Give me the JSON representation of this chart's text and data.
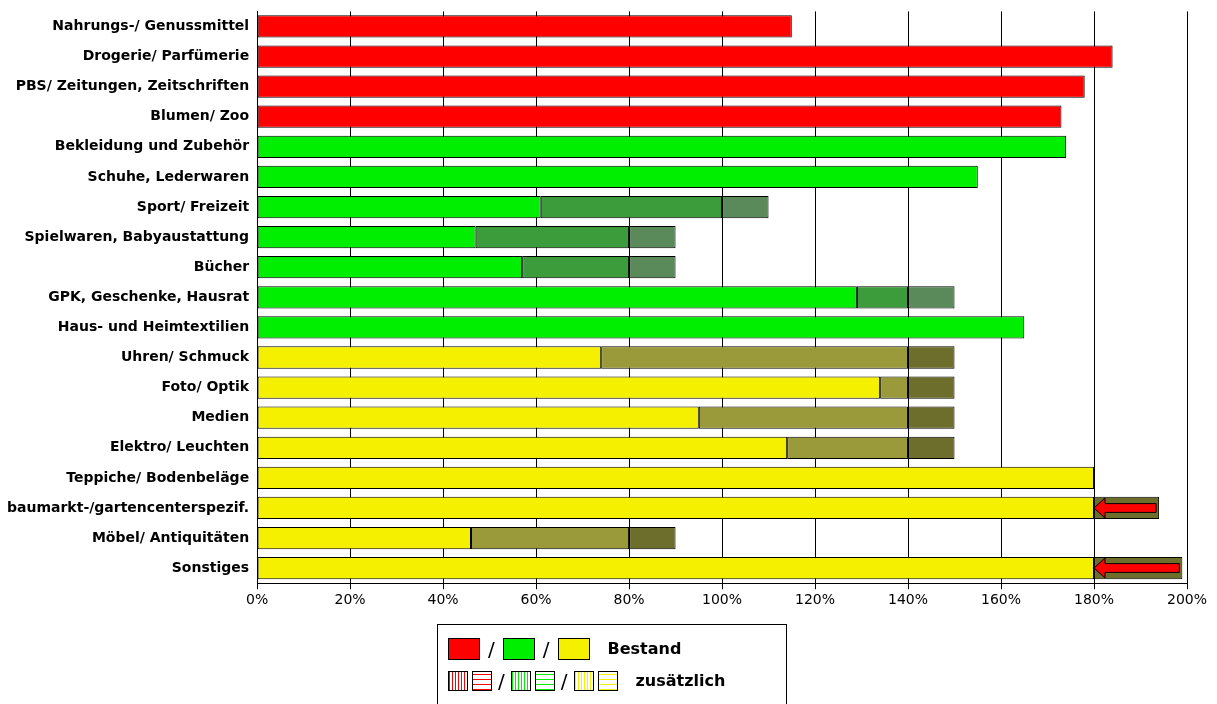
{
  "chart_data": {
    "type": "bar",
    "orientation": "horizontal",
    "stacked": true,
    "categories": [
      "Nahrungs-/ Genussmittel",
      "Drogerie/ Parfümerie",
      "PBS/ Zeitungen, Zeitschriften",
      "Blumen/ Zoo",
      "Bekleidung und Zubehör",
      "Schuhe, Lederwaren",
      "Sport/ Freizeit",
      "Spielwaren, Babyaustattung",
      "Bücher",
      "GPK, Geschenke, Hausrat",
      "Haus- und Heimtextilien",
      "Uhren/ Schmuck",
      "Foto/ Optik",
      "Medien",
      "Elektro/ Leuchten",
      "Teppiche/ Bodenbeläge",
      "baumarkt-/gartencenterspezif.",
      "Möbel/ Antiquitäten",
      "Sonstiges"
    ],
    "series": [
      {
        "name": "Bestand",
        "colors": [
          "#ff0000",
          "#ff0000",
          "#ff0000",
          "#ff0000",
          "#00ee00",
          "#00ee00",
          "#00ee00",
          "#00ee00",
          "#00ee00",
          "#00ee00",
          "#00ee00",
          "#f5f000",
          "#f5f000",
          "#f5f000",
          "#f5f000",
          "#f5f000",
          "#f5f000",
          "#f5f000",
          "#f5f000"
        ],
        "values": [
          115,
          184,
          178,
          173,
          174,
          155,
          61,
          47,
          57,
          129,
          165,
          74,
          134,
          95,
          114,
          180,
          180,
          46,
          180
        ]
      },
      {
        "name": "zusätzlich",
        "colors": [
          "#ff0000",
          "#ff0000",
          "#ff0000",
          "#ff0000",
          "#3c9c3c",
          "#3c9c3c",
          "#3c9c3c",
          "#3c9c3c",
          "#3c9c3c",
          "#3c9c3c",
          "#3c9c3c",
          "#9a9a3a",
          "#9a9a3a",
          "#9a9a3a",
          "#9a9a3a",
          "#9a9a3a",
          "#9a9a3a",
          "#9a9a3a",
          "#9a9a3a"
        ],
        "values": [
          null,
          null,
          null,
          null,
          null,
          null,
          39,
          33,
          23,
          11,
          null,
          66,
          6,
          45,
          26,
          null,
          null,
          34,
          null
        ]
      },
      {
        "colors": [
          "#ff0000",
          "#ff0000",
          "#ff0000",
          "#ff0000",
          "#5a8a5a",
          "#5a8a5a",
          "#5a8a5a",
          "#5a8a5a",
          "#5a8a5a",
          "#5a8a5a",
          "#5a8a5a",
          "#6e6e2c",
          "#6e6e2c",
          "#6e6e2c",
          "#6e6e2c",
          "#6e6e2c",
          "#6e6e2c",
          "#6e6e2c",
          "#6e6e2c"
        ],
        "values": [
          null,
          null,
          null,
          null,
          null,
          null,
          10,
          10,
          10,
          10,
          null,
          10,
          10,
          10,
          10,
          null,
          14,
          10,
          19
        ]
      }
    ],
    "xlim": [
      0,
      200
    ],
    "xticks": [
      {
        "value": 0,
        "label": "0%"
      },
      {
        "value": 20,
        "label": "20%"
      },
      {
        "value": 40,
        "label": "40%"
      },
      {
        "value": 60,
        "label": "60%"
      },
      {
        "value": 80,
        "label": "80%"
      },
      {
        "value": 100,
        "label": "100%"
      },
      {
        "value": 120,
        "label": "120%"
      },
      {
        "value": 140,
        "label": "140%"
      },
      {
        "value": 160,
        "label": "160%"
      },
      {
        "value": 180,
        "label": "180%"
      },
      {
        "value": 200,
        "label": "200%"
      }
    ],
    "grid": "x",
    "legend": "bottom",
    "annotations": [
      "/",
      "/",
      "/",
      "/"
    ]
  }
}
